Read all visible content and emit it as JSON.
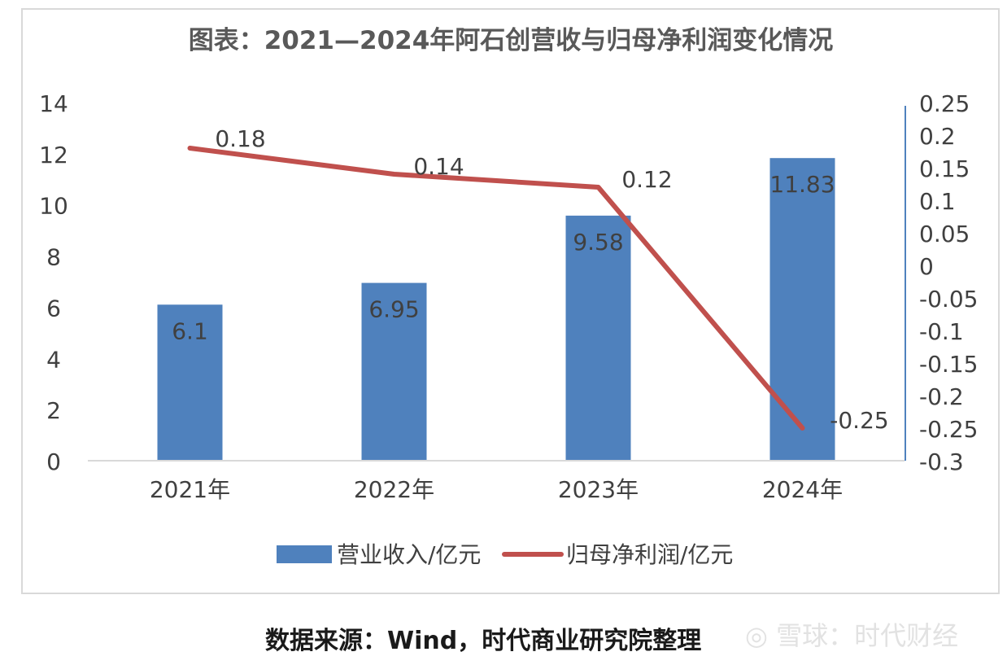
{
  "chart_data": {
    "type": "bar",
    "title": "图表：2021—2024年阿石创营收与归母净利润变化情况",
    "categories": [
      "2021年",
      "2022年",
      "2023年",
      "2024年"
    ],
    "series": [
      {
        "name": "营业收入/亿元",
        "type": "bar",
        "axis": "left",
        "values": [
          6.1,
          6.95,
          9.58,
          11.83
        ],
        "labels": [
          "6.1",
          "6.95",
          "9.58",
          "11.83"
        ],
        "color": "#4f81bd"
      },
      {
        "name": "归母净利润/亿元",
        "type": "line",
        "axis": "right",
        "values": [
          0.18,
          0.14,
          0.12,
          -0.25
        ],
        "labels": [
          "0.18",
          "0.14",
          "0.12",
          "-0.25"
        ],
        "color": "#c0504d"
      }
    ],
    "y_left": {
      "ylim": [
        0,
        14
      ],
      "ticks": [
        "0",
        "2",
        "4",
        "6",
        "8",
        "10",
        "12",
        "14"
      ]
    },
    "y_right": {
      "ylim": [
        -0.3,
        0.25
      ],
      "ticks": [
        "-0.3",
        "-0.25",
        "-0.2",
        "-0.15",
        "-0.1",
        "-0.05",
        "0",
        "0.05",
        "0.1",
        "0.15",
        "0.2",
        "0.25"
      ]
    },
    "legend": "bottom",
    "grid": false
  },
  "source_text": "数据来源：Wind，时代商业研究院整理",
  "watermark_text": "雪球：时代财经"
}
